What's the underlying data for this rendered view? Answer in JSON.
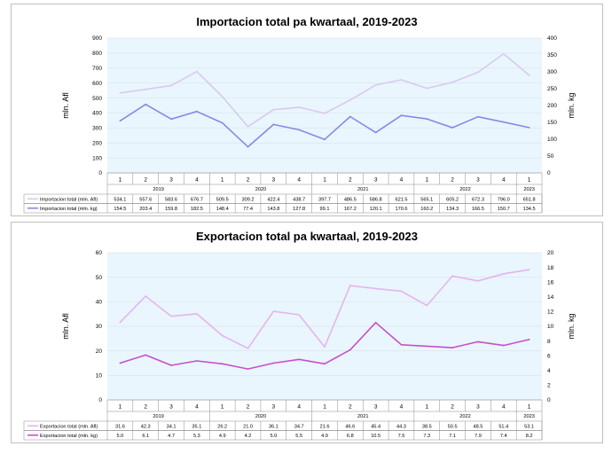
{
  "chart_data": [
    {
      "type": "line",
      "title": "Importacion total pa kwartaal, 2019-2023",
      "ylabel_left": "mln. Afl",
      "ylabel_right": "mln. kg",
      "ylim_left": [
        0,
        900
      ],
      "ylim_right": [
        0,
        400
      ],
      "yticks_left": [
        "0",
        "100",
        "200",
        "300",
        "400",
        "500",
        "600",
        "700",
        "800",
        "900"
      ],
      "yticks_right": [
        "0",
        "50",
        "100",
        "150",
        "200",
        "250",
        "300",
        "350",
        "400"
      ],
      "quarters": [
        "1",
        "2",
        "3",
        "4",
        "1",
        "2",
        "3",
        "4",
        "1",
        "2",
        "3",
        "4",
        "1",
        "2",
        "3",
        "4",
        "1"
      ],
      "years": [
        "2019",
        "2020",
        "2021",
        "2022",
        "2023"
      ],
      "series": [
        {
          "name": "Importacion total (mln. Afl)",
          "axis": "left",
          "color": "#d9c9f0",
          "values": [
            534.1,
            557.6,
            583.6,
            676.7,
            509.5,
            309.2,
            422.4,
            438.7,
            397.7,
            486.5,
            586.8,
            621.5,
            565.1,
            605.2,
            672.3,
            796.0,
            651.8
          ],
          "labels": [
            "534.1",
            "557.6",
            "583.6",
            "676.7",
            "509.5",
            "309.2",
            "422.4",
            "438.7",
            "397.7",
            "486.5",
            "586.8",
            "621.5",
            "565.1",
            "605.2",
            "672.3",
            "796.0",
            "651.8"
          ]
        },
        {
          "name": "Importacion total (mln. kg)",
          "axis": "right",
          "color": "#8d86e6",
          "values": [
            154.5,
            203.4,
            159.8,
            182.5,
            148.4,
            77.4,
            143.8,
            127.8,
            99.1,
            167.2,
            120.1,
            170.6,
            160.2,
            134.3,
            166.5,
            150.7,
            134.5
          ],
          "labels": [
            "154.5",
            "203.4",
            "159.8",
            "182.5",
            "148.4",
            "77.4",
            "143.8",
            "127.8",
            "99.1",
            "167.2",
            "120.1",
            "170.6",
            "160.2",
            "134.3",
            "166.5",
            "150.7",
            "134.5"
          ]
        }
      ]
    },
    {
      "type": "line",
      "title": "Exportacion total pa kwartaal, 2019-2023",
      "ylabel_left": "mln. Afl",
      "ylabel_right": "mln. kg",
      "ylim_left": [
        0,
        60
      ],
      "ylim_right": [
        0,
        20
      ],
      "yticks_left": [
        "0",
        "10",
        "20",
        "30",
        "40",
        "50",
        "60"
      ],
      "yticks_right": [
        "0",
        "2",
        "4",
        "6",
        "8",
        "10",
        "12",
        "14",
        "16",
        "18",
        "20"
      ],
      "quarters": [
        "1",
        "2",
        "3",
        "4",
        "1",
        "2",
        "3",
        "4",
        "1",
        "2",
        "3",
        "4",
        "1",
        "2",
        "3",
        "4",
        "1"
      ],
      "years": [
        "2019",
        "2020",
        "2021",
        "2022",
        "2023"
      ],
      "series": [
        {
          "name": "Exportacion total (mln. Afl)",
          "axis": "left",
          "color": "#e7b3ee",
          "values": [
            31.6,
            42.3,
            34.1,
            35.1,
            26.2,
            21.0,
            36.1,
            34.7,
            21.6,
            46.6,
            45.4,
            44.3,
            38.5,
            50.5,
            48.5,
            51.4,
            53.1
          ],
          "labels": [
            "31.6",
            "42.3",
            "34.1",
            "35.1",
            "26.2",
            "21.0",
            "36.1",
            "34.7",
            "21.6",
            "46.6",
            "45.4",
            "44.3",
            "38.5",
            "50.5",
            "48.5",
            "51.4",
            "53.1"
          ]
        },
        {
          "name": "Exportacion total (mln. kg)",
          "axis": "right",
          "color": "#c94fc8",
          "values": [
            5.0,
            6.1,
            4.7,
            5.3,
            4.9,
            4.2,
            5.0,
            5.5,
            4.9,
            6.8,
            10.5,
            7.5,
            7.3,
            7.1,
            7.9,
            7.4,
            8.2
          ],
          "labels": [
            "5.0",
            "6.1",
            "4.7",
            "5.3",
            "4.9",
            "4.2",
            "5.0",
            "5.5",
            "4.9",
            "6.8",
            "10.5",
            "7.5",
            "7.3",
            "7.1",
            "7.9",
            "7.4",
            "8.2"
          ]
        }
      ]
    }
  ]
}
